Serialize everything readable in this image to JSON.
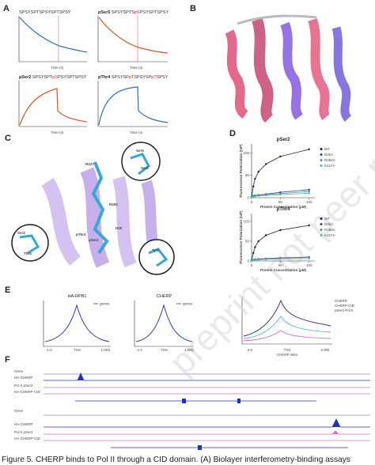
{
  "watermark": "preprint not peer reviewed",
  "caption": "Figure 5. CHERP binds to Pol II through a CID domain. (A) Biolayer interferometry-binding assays",
  "panels": {
    "a": {
      "letter": "A",
      "x_label": "Time (s)",
      "plots": [
        {
          "name": "",
          "parts": [
            {
              "text": "SPSYSPTSPSYSPTSPSY",
              "color": "#333"
            }
          ]
        },
        {
          "name": "pSer5",
          "parts": [
            {
              "text": "SPSYSPTS",
              "color": "#333"
            },
            {
              "text": "pS",
              "color": "#d22"
            },
            {
              "text": "PSYSPTSPSY",
              "color": "#333"
            }
          ]
        },
        {
          "name": "pSer2",
          "parts": [
            {
              "text": "SPSYSPT",
              "color": "#333"
            },
            {
              "text": "pS",
              "color": "#d22"
            },
            {
              "text": "PSYSPTSPSY",
              "color": "#333"
            }
          ]
        },
        {
          "name": "pThr4",
          "parts": [
            {
              "text": "SPSYSP",
              "color": "#333"
            },
            {
              "text": "pT",
              "color": "#d22"
            },
            {
              "text": "SPSYSP",
              "color": "#333"
            },
            {
              "text": "pT",
              "color": "#d22"
            },
            {
              "text": "SPSY",
              "color": "#333"
            }
          ]
        }
      ]
    },
    "b": {
      "letter": "B"
    },
    "c": {
      "letter": "C",
      "labels": [
        "Ser5",
        "Ser2",
        "R227",
        "R262",
        "D20",
        "pSer2",
        "pThr4",
        "Ser2",
        "Thr4",
        "Tyr1"
      ]
    },
    "d": {
      "letter": "D",
      "x_label": "Protein Concentration (μM)",
      "y_label": "Fluorescence Polarization (mP)",
      "xlim": [
        0,
        110
      ],
      "xticks": [
        0,
        50,
        100
      ],
      "ylim": [
        0,
        120
      ],
      "yticks": [
        0,
        50,
        100
      ],
      "x": [
        0,
        3,
        6,
        12,
        25,
        50,
        100
      ],
      "plots": [
        {
          "title": "pSer2",
          "series": [
            {
              "name": "WT",
              "color": "#1f1a4d",
              "values": [
                2,
                25,
                42,
                58,
                75,
                92,
                108
              ]
            },
            {
              "name": "D20A",
              "color": "#30408a",
              "values": [
                2,
                4,
                5,
                6,
                8,
                12,
                18
              ]
            },
            {
              "name": "R262A",
              "color": "#4a8fa8",
              "values": [
                2,
                3,
                4,
                5,
                7,
                9,
                14
              ]
            },
            {
              "name": "K227A",
              "color": "#59b3a0",
              "values": [
                1,
                2,
                3,
                4,
                5,
                7,
                10
              ]
            }
          ]
        },
        {
          "title": "pThr4",
          "series": [
            {
              "name": "WT",
              "color": "#1f1a4d",
              "values": [
                2,
                20,
                35,
                50,
                65,
                78,
                90
              ]
            },
            {
              "name": "D20A",
              "color": "#30408a",
              "values": [
                1,
                3,
                4,
                5,
                6,
                8,
                10
              ]
            },
            {
              "name": "R262A",
              "color": "#4a8fa8",
              "values": [
                1,
                2,
                3,
                4,
                5,
                7,
                9
              ]
            },
            {
              "name": "K227A",
              "color": "#59b3a0",
              "values": [
                1,
                2,
                2,
                3,
                4,
                5,
                6
              ]
            }
          ]
        }
      ]
    },
    "e": {
      "letter": "E",
      "plots": [
        {
          "title": "HA-RPB1",
          "legend": "genes",
          "xlabels": [
            "-1.0",
            "TSS",
            "1.0Kb"
          ]
        },
        {
          "title": "CHERP",
          "legend": "genes",
          "xlabels": [
            "-1.0",
            "TSS",
            "1.0Kb"
          ]
        },
        {
          "title": "",
          "legend": "",
          "xlabels": [
            "-2.0",
            "TSS",
            "2.0kb"
          ],
          "x_title": "CHERP sites",
          "items": [
            "CHERP",
            "CHERP-CID",
            "pSer2 Pol II"
          ]
        }
      ]
    },
    "f": {
      "letter": "F",
      "tracks": [
        "Gene",
        "HA-CHERP",
        "Pol II pSer2",
        "HA-CHERP-CID",
        "Gene",
        "HA-CHERP",
        "Pol II pSer2",
        "HA-CHERP-CID"
      ]
    }
  }
}
